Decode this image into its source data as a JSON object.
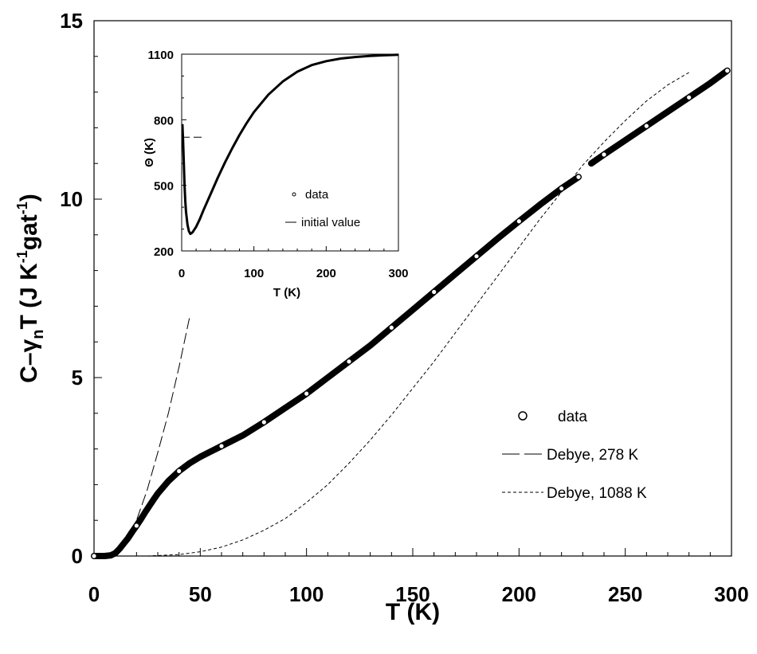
{
  "chart_data": [
    {
      "type": "scatter",
      "title": "",
      "xlabel": "T  (K)",
      "ylabel_parts": {
        "base": "C–γ",
        "sub": "n",
        "after": "T  (J K",
        "sup1": "-1",
        "mid": "gat",
        "sup2": "-1",
        "close": ")"
      },
      "xlim": [
        0,
        300
      ],
      "ylim": [
        0,
        15
      ],
      "x_ticks": [
        0,
        50,
        100,
        150,
        200,
        250,
        300
      ],
      "y_ticks": [
        0,
        5,
        10,
        15
      ],
      "series": [
        {
          "name": "data",
          "style": "open-circle-markers",
          "x": [
            0,
            5,
            8,
            10,
            12,
            14,
            16,
            18,
            20,
            22,
            24,
            26,
            28,
            30,
            35,
            40,
            45,
            50,
            55,
            60,
            70,
            80,
            90,
            100,
            110,
            120,
            130,
            140,
            150,
            160,
            170,
            180,
            190,
            200,
            210,
            220,
            228,
            234,
            240,
            250,
            260,
            270,
            280,
            290,
            298
          ],
          "y": [
            0,
            0,
            0.02,
            0.08,
            0.2,
            0.35,
            0.5,
            0.68,
            0.85,
            1.03,
            1.22,
            1.4,
            1.58,
            1.75,
            2.1,
            2.38,
            2.6,
            2.78,
            2.93,
            3.08,
            3.38,
            3.75,
            4.15,
            4.55,
            5.0,
            5.45,
            5.9,
            6.4,
            6.9,
            7.4,
            7.9,
            8.4,
            8.9,
            9.38,
            9.85,
            10.3,
            10.62,
            11.0,
            11.25,
            11.65,
            12.05,
            12.45,
            12.85,
            13.25,
            13.6
          ]
        },
        {
          "name": "Debye, 278 K",
          "style": "long-dash-line",
          "x": [
            8,
            15,
            20,
            25,
            30,
            35,
            40,
            45
          ],
          "y": [
            0.0,
            0.45,
            1.0,
            1.85,
            2.9,
            4.0,
            5.3,
            6.7
          ]
        },
        {
          "name": "Debye, 1088 K",
          "style": "short-dash-line",
          "x": [
            25,
            40,
            50,
            60,
            70,
            80,
            90,
            100,
            110,
            120,
            130,
            140,
            150,
            160,
            170,
            180,
            190,
            200,
            210,
            220,
            230,
            240,
            250,
            260,
            270,
            280
          ],
          "y": [
            0.0,
            0.04,
            0.12,
            0.25,
            0.45,
            0.72,
            1.05,
            1.5,
            2.0,
            2.6,
            3.25,
            3.95,
            4.7,
            5.45,
            6.25,
            7.05,
            7.85,
            8.65,
            9.45,
            10.2,
            10.95,
            11.6,
            12.2,
            12.75,
            13.2,
            13.55
          ]
        }
      ],
      "legend": {
        "placement": "lower-right",
        "entries": [
          "data",
          "Debye, 278 K",
          "Debye, 1088 K"
        ]
      }
    },
    {
      "type": "line",
      "title": "",
      "xlabel": "T (K)",
      "ylabel": "Θ (K)",
      "xlim": [
        0,
        300
      ],
      "ylim": [
        200,
        1100
      ],
      "x_ticks": [
        0,
        100,
        200,
        300
      ],
      "y_ticks": [
        200,
        500,
        800,
        1100
      ],
      "series": [
        {
          "name": "data",
          "style": "dot-markers",
          "x": [
            1,
            2,
            3,
            4,
            5,
            6,
            8,
            10,
            12,
            15,
            20,
            25,
            30,
            40,
            50,
            60,
            70,
            80,
            90,
            100,
            120,
            140,
            160,
            180,
            200,
            220,
            240,
            260,
            280,
            300
          ],
          "y": [
            780,
            700,
            600,
            500,
            430,
            380,
            320,
            290,
            278,
            285,
            310,
            345,
            385,
            460,
            535,
            605,
            670,
            730,
            785,
            835,
            915,
            975,
            1020,
            1050,
            1068,
            1080,
            1087,
            1092,
            1095,
            1097
          ]
        },
        {
          "name": "initial value",
          "style": "long-dash-line",
          "x": [
            0,
            30
          ],
          "y": [
            720,
            720
          ]
        }
      ],
      "legend": {
        "placement": "lower-right",
        "entries": [
          "data",
          "initial value"
        ]
      }
    }
  ]
}
